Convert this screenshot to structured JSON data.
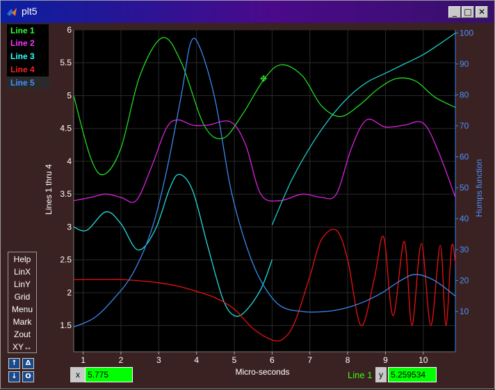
{
  "window": {
    "title": "plt5"
  },
  "legend": [
    {
      "label": "Line 1",
      "color": "#33ff33"
    },
    {
      "label": "Line 2",
      "color": "#ff33ff"
    },
    {
      "label": "Line 3",
      "color": "#33ffff"
    },
    {
      "label": "Line 4",
      "color": "#ff2222"
    },
    {
      "label": "Line 5",
      "color": "#4a90ff"
    }
  ],
  "menu": [
    "Help",
    "LinX",
    "LinY",
    "Grid",
    "Menu",
    "Mark",
    "Zout",
    "XY↔"
  ],
  "cursor": {
    "x_label": "x",
    "x_value": "5.775",
    "y_label": "y",
    "y_value": "5.259534",
    "line_name": "Line 1"
  },
  "chart_data": {
    "type": "line",
    "xlabel": "Micro-seconds",
    "ylabel": "Lines 1 thru 4",
    "ylabel_right": "Humps function",
    "xlim": [
      0.75,
      10.85
    ],
    "ylim": [
      1.1,
      6.0
    ],
    "ylim_right": [
      -3,
      101
    ],
    "xticks": [
      1,
      2,
      3,
      4,
      5,
      6,
      7,
      8,
      9,
      10
    ],
    "yticks": [
      1.5,
      2,
      2.5,
      3,
      3.5,
      4,
      4.5,
      5,
      5.5,
      6
    ],
    "yticks_right": [
      10,
      20,
      30,
      40,
      50,
      60,
      70,
      80,
      90,
      100
    ],
    "grid": true,
    "series": [
      {
        "name": "Line 1",
        "color": "#22dd22",
        "x": [
          0.75,
          1.2,
          1.55,
          2.0,
          2.5,
          3.1,
          3.6,
          4.2,
          4.7,
          5.2,
          5.8,
          6.25,
          6.8,
          7.3,
          7.8,
          8.3,
          8.8,
          9.3,
          9.8,
          10.3,
          10.85
        ],
        "y": [
          5.0,
          4.05,
          3.8,
          4.2,
          5.3,
          5.88,
          5.5,
          4.55,
          4.35,
          4.7,
          5.26,
          5.47,
          5.3,
          4.85,
          4.68,
          4.85,
          5.1,
          5.26,
          5.22,
          4.98,
          4.82
        ]
      },
      {
        "name": "Line 2",
        "color": "#dd22dd",
        "x": [
          0.75,
          1.2,
          1.6,
          2.0,
          2.4,
          2.8,
          3.2,
          3.5,
          3.9,
          4.3,
          4.9,
          5.3,
          5.7,
          6.2,
          6.8,
          7.3,
          7.7,
          8.1,
          8.5,
          9.0,
          9.5,
          10.0,
          10.4,
          10.85
        ],
        "y": [
          3.4,
          3.45,
          3.5,
          3.45,
          3.4,
          3.9,
          4.5,
          4.63,
          4.55,
          4.55,
          4.6,
          4.25,
          3.5,
          3.4,
          3.5,
          3.45,
          3.5,
          4.2,
          4.63,
          4.52,
          4.55,
          4.58,
          4.15,
          3.45
        ]
      },
      {
        "name": "Line 3",
        "color": "#22dddd",
        "x": [
          0.75,
          1.1,
          1.6,
          2.0,
          2.45,
          2.9,
          3.3,
          3.55,
          3.9,
          4.3,
          4.7,
          5.0,
          5.3,
          5.7,
          6.0
        ],
        "y": [
          3.0,
          2.95,
          3.23,
          3.05,
          2.65,
          2.95,
          3.6,
          3.8,
          3.55,
          2.7,
          1.9,
          1.65,
          1.72,
          2.05,
          2.5
        ]
      },
      {
        "name": "Line 4",
        "color": "#ee1111",
        "x": [
          0.75,
          1.5,
          2.0,
          2.5,
          3.0,
          3.5,
          4.0,
          4.5,
          5.0,
          5.5,
          6.0,
          6.3,
          6.6,
          7.0,
          7.3,
          7.7,
          8.0,
          8.35,
          8.7,
          8.95,
          9.2,
          9.5,
          9.7,
          9.95,
          10.2,
          10.45,
          10.6,
          10.75,
          10.85
        ],
        "y": [
          2.2,
          2.2,
          2.2,
          2.18,
          2.15,
          2.1,
          2.02,
          1.92,
          1.75,
          1.45,
          1.28,
          1.3,
          1.55,
          2.25,
          2.8,
          2.95,
          2.5,
          1.5,
          2.2,
          2.85,
          1.65,
          2.78,
          1.5,
          2.75,
          1.5,
          2.72,
          1.5,
          2.7,
          2.45
        ]
      },
      {
        "name": "Line 5",
        "color": "#3a8aef",
        "axis": "right",
        "x": [
          0.75,
          1.3,
          1.8,
          2.3,
          2.8,
          3.2,
          3.6,
          3.85,
          4.1,
          4.5,
          4.9,
          5.3,
          5.7,
          6.2,
          6.8,
          7.4,
          7.9,
          8.4,
          8.9,
          9.4,
          9.8,
          10.3,
          10.85
        ],
        "y": [
          5,
          8,
          14,
          22,
          36,
          55,
          80,
          97,
          95,
          78,
          50,
          32,
          20,
          12,
          10,
          10,
          11,
          13,
          16,
          20,
          22,
          20,
          15
        ]
      },
      {
        "name": "Humps",
        "color": "#22cccc",
        "axis": "right",
        "x": [
          6.0,
          6.5,
          7.0,
          7.5,
          8.0,
          8.5,
          9.0,
          9.5,
          10.0,
          10.5,
          10.85
        ],
        "y": [
          38,
          52,
          63,
          72,
          79,
          84,
          87,
          90,
          93,
          97,
          100
        ]
      }
    ],
    "marker": {
      "x": 5.775,
      "y": 5.26,
      "series": "Line 1"
    }
  }
}
